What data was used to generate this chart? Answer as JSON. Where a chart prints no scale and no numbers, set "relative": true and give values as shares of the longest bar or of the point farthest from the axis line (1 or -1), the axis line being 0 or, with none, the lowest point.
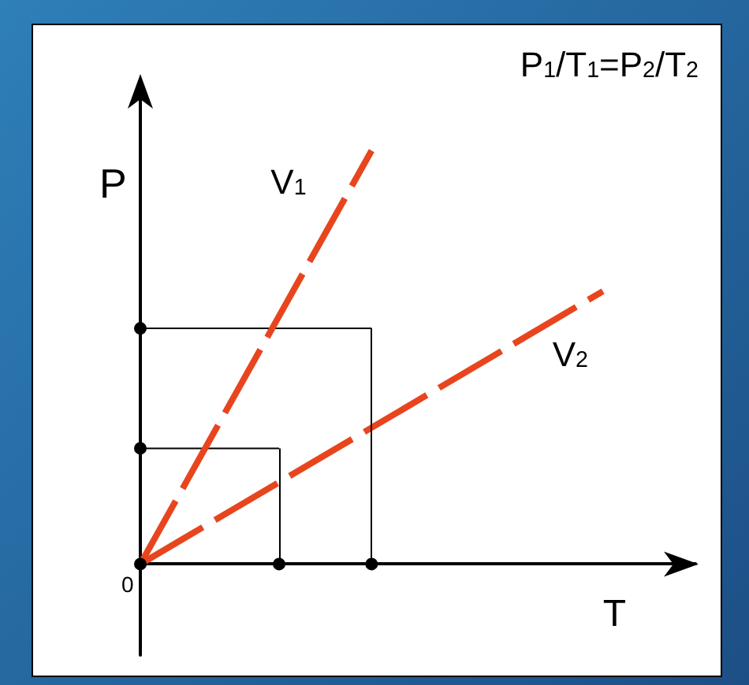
{
  "chart_data": {
    "type": "line",
    "relative": true,
    "title": "P$_{1}$/T$_{1}$=P$_{2}$/T$_{2}$",
    "xlabel": "T",
    "ylabel": "P",
    "annotations": [
      "0"
    ],
    "grid": false,
    "legend": false,
    "line_style": "dashed",
    "categories": [
      null,
      null,
      null,
      null,
      null,
      null,
      null,
      null,
      null,
      null,
      null,
      null,
      null
    ],
    "series": [
      {
        "name": "V$_{1}$",
        "color": "#e8451e",
        "values": [
          0,
          0.2,
          0.4,
          0.6,
          0.8,
          1,
          null,
          null,
          null,
          null,
          null,
          null,
          null
        ]
      },
      {
        "name": "V$_{2}$",
        "color": "#e8451e",
        "values": [
          0,
          0.066,
          0.132,
          0.198,
          0.264,
          0.33,
          0.396,
          0.462,
          0.528,
          0.594,
          0.66,
          null,
          null
        ]
      },
      {
        "color": "#000000",
        "line_style": "solid",
        "values": [
          0.28,
          0.28,
          0.28,
          0.28,
          null,
          null,
          null,
          null,
          null,
          null,
          null,
          null,
          null
        ]
      },
      {
        "color": "#000000",
        "line_style": "solid",
        "values": [
          0.57,
          0.57,
          0.57,
          0.57,
          0.57,
          0.57,
          null,
          null,
          null,
          null,
          null,
          null,
          null
        ]
      }
    ]
  }
}
